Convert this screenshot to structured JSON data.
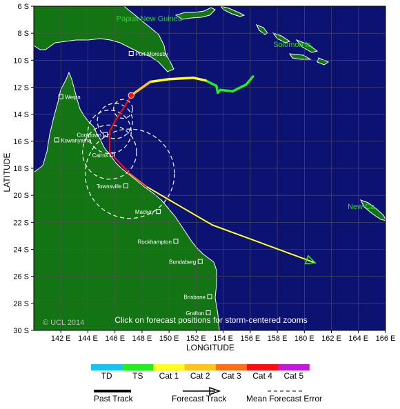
{
  "map": {
    "bounds": {
      "lon": [
        140,
        166
      ],
      "lat": [
        -6,
        -30
      ]
    },
    "y_axis_label": "LATITUDE",
    "x_axis_label": "LONGITUDE",
    "lat_ticks": [
      {
        "value": -6,
        "label": "6 S"
      },
      {
        "value": -8,
        "label": "8 S"
      },
      {
        "value": -10,
        "label": "10 S"
      },
      {
        "value": -12,
        "label": "12 S"
      },
      {
        "value": -14,
        "label": "14 S"
      },
      {
        "value": -16,
        "label": "16 S"
      },
      {
        "value": -18,
        "label": "18 S"
      },
      {
        "value": -20,
        "label": "20 S"
      },
      {
        "value": -22,
        "label": "22 S"
      },
      {
        "value": -24,
        "label": "24 S"
      },
      {
        "value": -26,
        "label": "26 S"
      },
      {
        "value": -28,
        "label": "28 S"
      },
      {
        "value": -30,
        "label": "30 S"
      }
    ],
    "lon_ticks": [
      {
        "value": 142,
        "label": "142 E"
      },
      {
        "value": 144,
        "label": "144 E"
      },
      {
        "value": 146,
        "label": "146 E"
      },
      {
        "value": 148,
        "label": "148 E"
      },
      {
        "value": 150,
        "label": "150 E"
      },
      {
        "value": 152,
        "label": "152 E"
      },
      {
        "value": 154,
        "label": "154 E"
      },
      {
        "value": 156,
        "label": "156 E"
      },
      {
        "value": 158,
        "label": "158 E"
      },
      {
        "value": 160,
        "label": "160 E"
      },
      {
        "value": 162,
        "label": "162 E"
      },
      {
        "value": 164,
        "label": "164 E"
      },
      {
        "value": 166,
        "label": "166 E"
      }
    ],
    "region_labels": [
      {
        "id": "png",
        "text": "Papua New Guinea",
        "lon": 146.1,
        "lat": -7.1
      },
      {
        "id": "solomon",
        "text": "Solomon Is.",
        "lon": 157.7,
        "lat": -9.0
      },
      {
        "id": "new-caledonia",
        "text": "New Ca",
        "lon": 163.2,
        "lat": -21.0
      }
    ],
    "cities": [
      {
        "name": "Port Moresby",
        "lon": 147.2,
        "lat": -9.5,
        "side": "right"
      },
      {
        "name": "Weipa",
        "lon": 142.0,
        "lat": -12.7,
        "side": "right"
      },
      {
        "name": "Cooktown",
        "lon": 145.3,
        "lat": -15.5,
        "side": "left"
      },
      {
        "name": "Kowanyama",
        "lon": 141.7,
        "lat": -15.9,
        "side": "right"
      },
      {
        "name": "Cairns",
        "lon": 145.8,
        "lat": -17.0,
        "side": "left"
      },
      {
        "name": "Townsville",
        "lon": 146.8,
        "lat": -19.3,
        "side": "left"
      },
      {
        "name": "Mackay",
        "lon": 149.2,
        "lat": -21.2,
        "side": "left"
      },
      {
        "name": "Rockhampton",
        "lon": 150.5,
        "lat": -23.4,
        "side": "left"
      },
      {
        "name": "Bundaberg",
        "lon": 152.3,
        "lat": -24.9,
        "side": "left"
      },
      {
        "name": "Brisbane",
        "lon": 153.0,
        "lat": -27.5,
        "side": "left"
      },
      {
        "name": "Grafton",
        "lon": 152.9,
        "lat": -28.7,
        "side": "left"
      }
    ],
    "copyright": "© UCL 2014",
    "click_hint": "Click on forecast positions for storm-centered zooms",
    "colors": {
      "ocean": "#0b1272",
      "land": "#137413",
      "coast": "#ffffff",
      "grid": "#555555",
      "region_label": "#29d629",
      "city_label": "#ffffff",
      "error_circle": "#ffffff"
    }
  },
  "storm": {
    "past_track": [
      {
        "lon": 156.2,
        "lat": -11.2,
        "cat": "TS"
      },
      {
        "lon": 155.7,
        "lat": -11.8,
        "cat": "TS"
      },
      {
        "lon": 154.7,
        "lat": -12.3,
        "cat": "TS"
      },
      {
        "lon": 153.8,
        "lat": -12.2,
        "cat": "TS"
      },
      {
        "lon": 153.6,
        "lat": -12.4,
        "cat": "TS"
      },
      {
        "lon": 153.5,
        "lat": -11.9,
        "cat": "TS"
      },
      {
        "lon": 152.7,
        "lat": -11.5,
        "cat": "Cat 1"
      },
      {
        "lon": 151.8,
        "lat": -11.3,
        "cat": "Cat 1"
      },
      {
        "lon": 150.0,
        "lat": -11.4,
        "cat": "Cat 1"
      },
      {
        "lon": 148.6,
        "lat": -11.6,
        "cat": "Cat 2"
      },
      {
        "lon": 147.2,
        "lat": -12.6,
        "cat": "Cat 2"
      }
    ],
    "current_position": {
      "lon": 147.2,
      "lat": -12.6,
      "cat": "Cat 4"
    },
    "forecast_track": [
      {
        "lon": 147.2,
        "lat": -12.6,
        "cat": "Cat 4",
        "error_radius_deg": 0.0
      },
      {
        "lon": 146.6,
        "lat": -13.6,
        "cat": "Cat 4",
        "error_radius_deg": 0.7
      },
      {
        "lon": 146.0,
        "lat": -14.5,
        "cat": "Cat 4",
        "error_radius_deg": 1.3
      },
      {
        "lon": 145.6,
        "lat": -15.3,
        "cat": "Cat 4",
        "error_radius_deg": 1.6
      },
      {
        "lon": 145.6,
        "lat": -16.8,
        "cat": "Cat 4",
        "error_radius_deg": 2.0
      },
      {
        "lon": 147.1,
        "lat": -18.4,
        "cat": "Cat 3",
        "error_radius_deg": 3.3
      },
      {
        "lon": 148.4,
        "lat": -19.4,
        "cat": "Cat 1",
        "error_radius_deg": 0.0
      },
      {
        "lon": 153.2,
        "lat": -22.2,
        "cat": "Cat 1",
        "error_radius_deg": 0.0
      },
      {
        "lon": 160.8,
        "lat": -25.0,
        "cat": "Cat 1",
        "error_radius_deg": 0.0
      }
    ]
  },
  "legend": {
    "categories": [
      {
        "label": "TD",
        "color": "#19c2f0"
      },
      {
        "label": "TS",
        "color": "#22ee22"
      },
      {
        "label": "Cat 1",
        "color": "#ffff22"
      },
      {
        "label": "Cat 2",
        "color": "#ffc31e"
      },
      {
        "label": "Cat 3",
        "color": "#ff6e18"
      },
      {
        "label": "Cat 4",
        "color": "#ff0e0e"
      },
      {
        "label": "Cat 5",
        "color": "#c21ad6"
      }
    ],
    "past_track_label": "Past Track",
    "forecast_track_label": "Forecast Track",
    "error_label": "Mean Forecast Error"
  }
}
